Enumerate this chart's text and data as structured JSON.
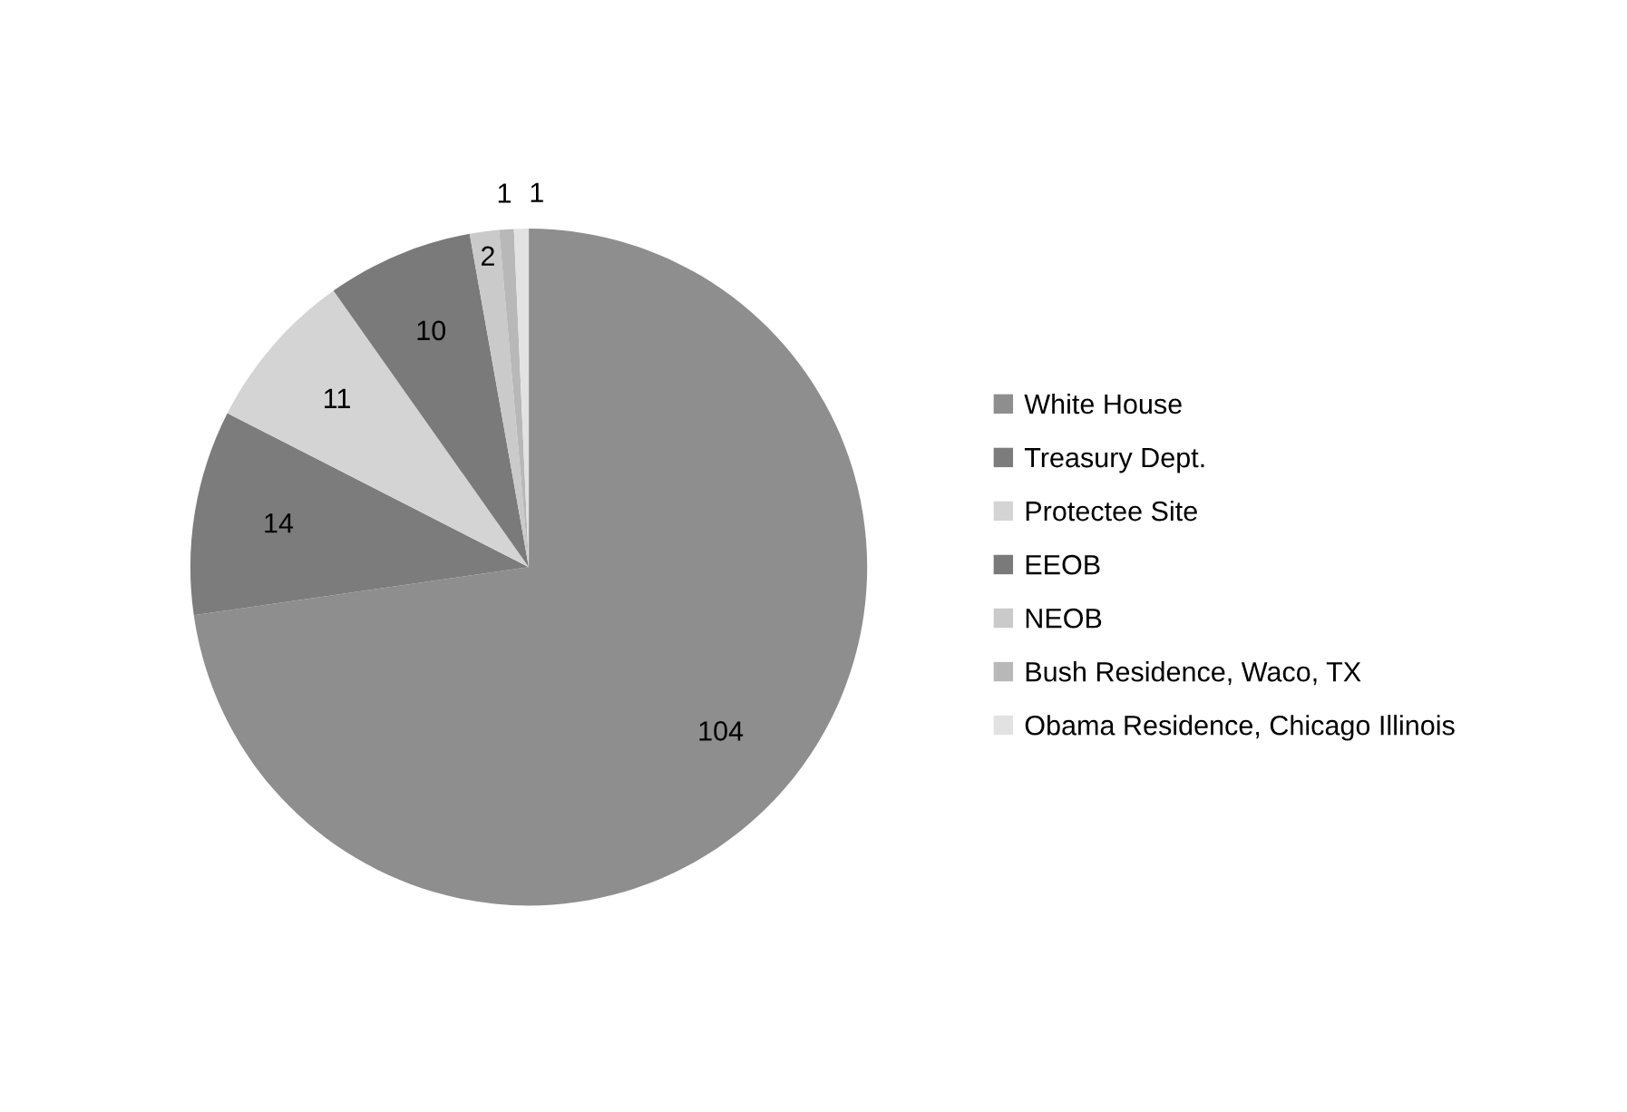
{
  "chart_data": {
    "type": "pie",
    "categories": [
      "White House",
      "Treasury Dept.",
      "Protectee Site",
      "EEOB",
      "NEOB",
      "Bush Residence, Waco, TX",
      "Obama Residence, Chicago Illinois"
    ],
    "values": [
      104,
      14,
      11,
      10,
      2,
      1,
      1
    ],
    "colors": [
      "#8e8e8e",
      "#7c7c7c",
      "#d4d4d4",
      "#7a7a7a",
      "#cacaca",
      "#b8b8b8",
      "#e2e2e2"
    ],
    "data_labels": true,
    "legend": "right"
  }
}
